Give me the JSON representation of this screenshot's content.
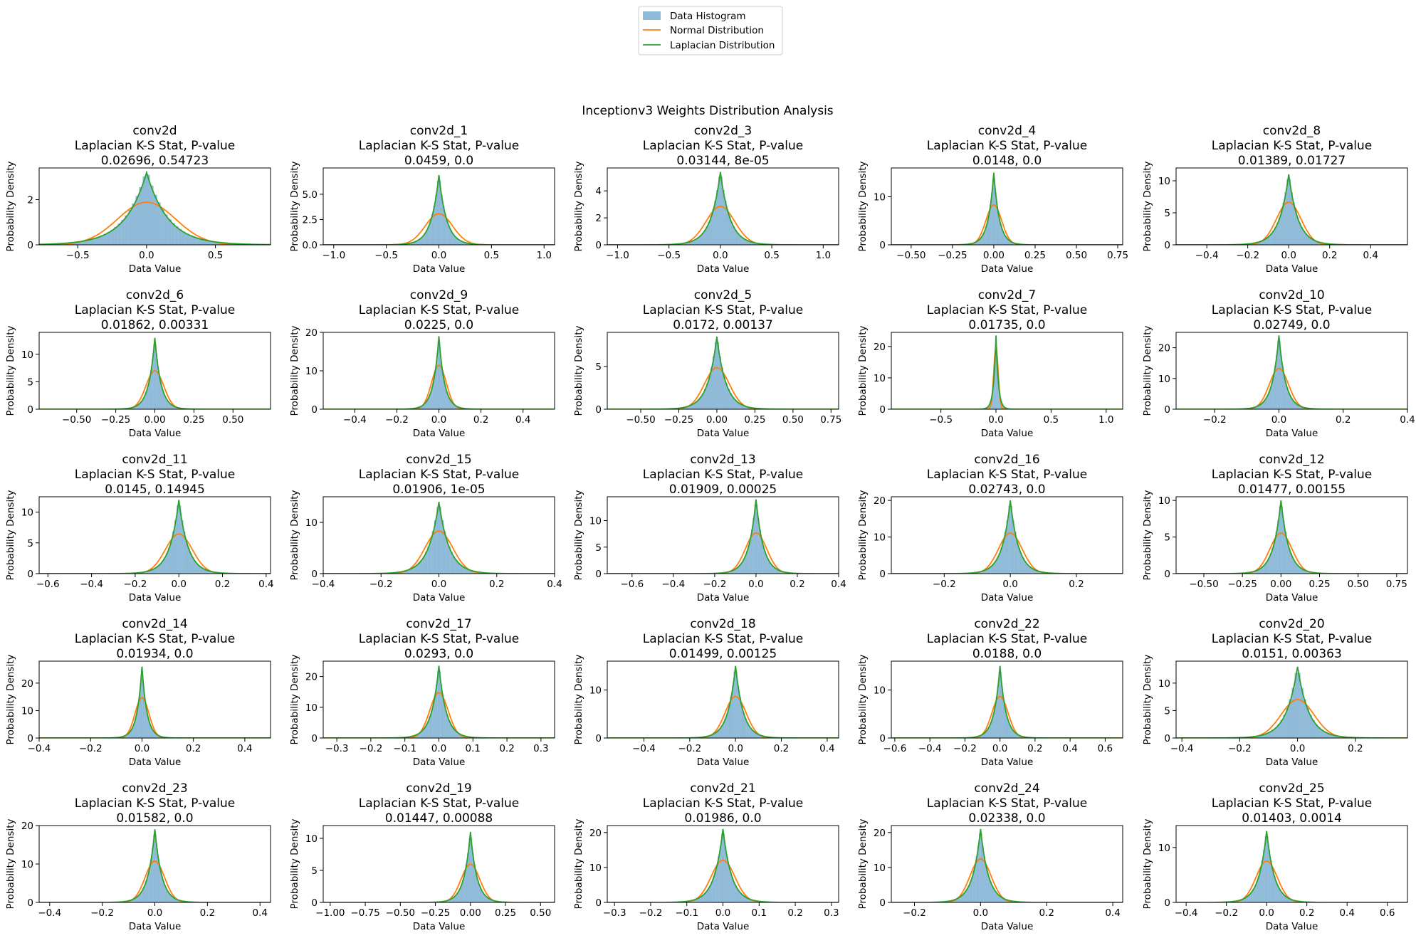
{
  "figure": {
    "suptitle": "Inceptionv3 Weights Distribution Analysis",
    "xlabel": "Data Value",
    "ylabel": "Probability Density",
    "stat_label": "Laplacian K-S Stat, P-value",
    "colors": {
      "hist": "#1f77b4",
      "normal": "#ff7f0e",
      "laplace": "#2ca02c"
    }
  },
  "legend": {
    "items": [
      {
        "label": "Data Histogram",
        "kind": "patch",
        "color": "#1f77b4"
      },
      {
        "label": "Normal Distribution",
        "kind": "line",
        "color": "#ff7f0e"
      },
      {
        "label": "Laplacian Distribution",
        "kind": "line",
        "color": "#2ca02c"
      }
    ]
  },
  "chart_data": [
    {
      "type": "histogram+line",
      "name": "conv2d",
      "stats": "0.02696, 0.54723",
      "xlim": [
        -0.78,
        0.9
      ],
      "xticks": [
        -0.5,
        0,
        0.5
      ],
      "xtick_labels": [
        "−0.5",
        "0.0",
        "0.5"
      ],
      "ylim": [
        0,
        3.4
      ],
      "yticks": [
        0,
        2
      ],
      "ytick_labels": [
        "0",
        "2"
      ],
      "mu": 0,
      "sigma": 0.21,
      "laplace_b": 0.155,
      "peak": 3.2,
      "hist_range": [
        -0.6,
        0.7
      ],
      "bins": 50,
      "hist_scale": 1.04
    },
    {
      "type": "histogram+line",
      "name": "conv2d_1",
      "stats": "0.0459, 0.0",
      "xlim": [
        -1.1,
        1.1
      ],
      "xticks": [
        -1,
        -0.5,
        0,
        0.5,
        1
      ],
      "xtick_labels": [
        "−1.0",
        "−0.5",
        "0.0",
        "0.5",
        "1.0"
      ],
      "ylim": [
        0,
        7.6
      ],
      "yticks": [
        0,
        2.5,
        5
      ],
      "ytick_labels": [
        "0.0",
        "2.5",
        "5.0"
      ],
      "mu": 0,
      "sigma": 0.13,
      "laplace_b": 0.0727,
      "peak": 6.9,
      "hist_range": [
        -0.45,
        0.45
      ],
      "bins": 50,
      "hist_scale": 1.04
    },
    {
      "type": "histogram+line",
      "name": "conv2d_3",
      "stats": "0.03144, 8e-05",
      "xlim": [
        -1.1,
        1.15
      ],
      "xticks": [
        -1,
        -0.5,
        0,
        0.5,
        1
      ],
      "xtick_labels": [
        "−1.0",
        "−0.5",
        "0.0",
        "0.5",
        "1.0"
      ],
      "ylim": [
        0,
        5.7
      ],
      "yticks": [
        0,
        2,
        4
      ],
      "ytick_labels": [
        "0",
        "2",
        "4"
      ],
      "mu": 0,
      "sigma": 0.14,
      "laplace_b": 0.0926,
      "peak": 5.4,
      "hist_range": [
        -0.5,
        0.5
      ],
      "bins": 50,
      "hist_scale": 1.04
    },
    {
      "type": "histogram+line",
      "name": "conv2d_4",
      "stats": "0.0148, 0.0",
      "xlim": [
        -0.62,
        0.78
      ],
      "xticks": [
        -0.5,
        -0.25,
        0,
        0.25,
        0.5,
        0.75
      ],
      "xtick_labels": [
        "−0.50",
        "−0.25",
        "0.00",
        "0.25",
        "0.50",
        "0.75"
      ],
      "ylim": [
        0,
        16
      ],
      "yticks": [
        0,
        10
      ],
      "ytick_labels": [
        "0",
        "10"
      ],
      "mu": 0,
      "sigma": 0.048,
      "laplace_b": 0.0333,
      "peak": 15,
      "hist_range": [
        -0.2,
        0.2
      ],
      "bins": 50,
      "hist_scale": 1.04
    },
    {
      "type": "histogram+line",
      "name": "conv2d_8",
      "stats": "0.01389, 0.01727",
      "xlim": [
        -0.55,
        0.58
      ],
      "xticks": [
        -0.4,
        -0.2,
        0,
        0.2,
        0.4
      ],
      "xtick_labels": [
        "−0.4",
        "−0.2",
        "0.0",
        "0.2",
        "0.4"
      ],
      "ylim": [
        0,
        12
      ],
      "yticks": [
        0,
        5,
        10
      ],
      "ytick_labels": [
        "0",
        "5",
        "10"
      ],
      "mu": 0,
      "sigma": 0.06,
      "laplace_b": 0.0455,
      "peak": 11,
      "hist_range": [
        -0.25,
        0.25
      ],
      "bins": 50,
      "hist_scale": 1.04
    },
    {
      "type": "histogram+line",
      "name": "conv2d_6",
      "stats": "0.01862, 0.00331",
      "xlim": [
        -0.74,
        0.74
      ],
      "xticks": [
        -0.5,
        -0.25,
        0,
        0.25,
        0.5
      ],
      "xtick_labels": [
        "−0.50",
        "−0.25",
        "0.00",
        "0.25",
        "0.50"
      ],
      "ylim": [
        0,
        14
      ],
      "yticks": [
        0,
        5,
        10
      ],
      "ytick_labels": [
        "0",
        "5",
        "10"
      ],
      "mu": 0,
      "sigma": 0.057,
      "laplace_b": 0.0385,
      "peak": 13,
      "hist_range": [
        -0.25,
        0.25
      ],
      "bins": 50,
      "hist_scale": 1.04
    },
    {
      "type": "histogram+line",
      "name": "conv2d_9",
      "stats": "0.0225, 0.0",
      "xlim": [
        -0.55,
        0.55
      ],
      "xticks": [
        -0.4,
        -0.2,
        0,
        0.2,
        0.4
      ],
      "xtick_labels": [
        "−0.4",
        "−0.2",
        "0.0",
        "0.2",
        "0.4"
      ],
      "ylim": [
        0,
        20
      ],
      "yticks": [
        0,
        10,
        20
      ],
      "ytick_labels": [
        "0",
        "10",
        "20"
      ],
      "mu": 0,
      "sigma": 0.035,
      "laplace_b": 0.0263,
      "peak": 19,
      "hist_range": [
        -0.15,
        0.15
      ],
      "bins": 50,
      "hist_scale": 1.04
    },
    {
      "type": "histogram+line",
      "name": "conv2d_5",
      "stats": "0.0172, 0.00137",
      "xlim": [
        -0.72,
        0.8
      ],
      "xticks": [
        -0.5,
        -0.25,
        0,
        0.25,
        0.5,
        0.75
      ],
      "xtick_labels": [
        "−0.50",
        "−0.25",
        "0.00",
        "0.25",
        "0.50",
        "0.75"
      ],
      "ylim": [
        0,
        9
      ],
      "yticks": [
        0,
        5
      ],
      "ytick_labels": [
        "0",
        "5"
      ],
      "mu": 0,
      "sigma": 0.082,
      "laplace_b": 0.0588,
      "peak": 8.5,
      "hist_range": [
        -0.35,
        0.35
      ],
      "bins": 50,
      "hist_scale": 1.04
    },
    {
      "type": "histogram+line",
      "name": "conv2d_7",
      "stats": "0.01735, 0.0",
      "xlim": [
        -0.95,
        1.15
      ],
      "xticks": [
        -0.5,
        0,
        0.5,
        1
      ],
      "xtick_labels": [
        "−0.5",
        "0.0",
        "0.5",
        "1.0"
      ],
      "ylim": [
        0,
        24.5
      ],
      "yticks": [
        0,
        10,
        20
      ],
      "ytick_labels": [
        "0",
        "10",
        "20"
      ],
      "mu": 0,
      "sigma": 0.02,
      "laplace_b": 0.0213,
      "peak": 23.5,
      "hist_range": [
        -0.1,
        0.1
      ],
      "bins": 40,
      "hist_scale": 1.04
    },
    {
      "type": "histogram+line",
      "name": "conv2d_10",
      "stats": "0.02749, 0.0",
      "xlim": [
        -0.32,
        0.4
      ],
      "xticks": [
        -0.2,
        0,
        0.2,
        0.4
      ],
      "xtick_labels": [
        "−0.2",
        "0.0",
        "0.2",
        "0.4"
      ],
      "ylim": [
        0,
        25
      ],
      "yticks": [
        0,
        10,
        20
      ],
      "ytick_labels": [
        "0",
        "10",
        "20"
      ],
      "mu": 0,
      "sigma": 0.03,
      "laplace_b": 0.0208,
      "peak": 24,
      "hist_range": [
        -0.12,
        0.12
      ],
      "bins": 50,
      "hist_scale": 1.04
    },
    {
      "type": "histogram+line",
      "name": "conv2d_11",
      "stats": "0.0145, 0.14945",
      "xlim": [
        -0.64,
        0.42
      ],
      "xticks": [
        -0.6,
        -0.4,
        -0.2,
        0,
        0.2,
        0.4
      ],
      "xtick_labels": [
        "−0.6",
        "−0.4",
        "−0.2",
        "0.0",
        "0.2",
        "0.4"
      ],
      "ylim": [
        0,
        12.5
      ],
      "yticks": [
        0,
        5,
        10
      ],
      "ytick_labels": [
        "0",
        "5",
        "10"
      ],
      "mu": 0,
      "sigma": 0.062,
      "laplace_b": 0.0417,
      "peak": 12,
      "hist_range": [
        -0.25,
        0.25
      ],
      "bins": 50,
      "hist_scale": 1.04
    },
    {
      "type": "histogram+line",
      "name": "conv2d_15",
      "stats": "0.01906, 1e-05",
      "xlim": [
        -0.4,
        0.4
      ],
      "xticks": [
        -0.4,
        -0.2,
        0,
        0.2,
        0.4
      ],
      "xtick_labels": [
        "−0.4",
        "−0.2",
        "0.0",
        "0.2",
        "0.4"
      ],
      "ylim": [
        0,
        15
      ],
      "yticks": [
        0,
        10
      ],
      "ytick_labels": [
        "0",
        "10"
      ],
      "mu": 0,
      "sigma": 0.048,
      "laplace_b": 0.0357,
      "peak": 14,
      "hist_range": [
        -0.2,
        0.2
      ],
      "bins": 50,
      "hist_scale": 1.04
    },
    {
      "type": "histogram+line",
      "name": "conv2d_13",
      "stats": "0.01909, 0.00025",
      "xlim": [
        -0.72,
        0.4
      ],
      "xticks": [
        -0.6,
        -0.4,
        -0.2,
        0,
        0.2,
        0.4
      ],
      "xtick_labels": [
        "−0.6",
        "−0.4",
        "−0.2",
        "0.0",
        "0.2",
        "0.4"
      ],
      "ylim": [
        0,
        14.5
      ],
      "yticks": [
        0,
        5,
        10
      ],
      "ytick_labels": [
        "0",
        "5",
        "10"
      ],
      "mu": 0,
      "sigma": 0.052,
      "laplace_b": 0.0357,
      "peak": 14,
      "hist_range": [
        -0.2,
        0.2
      ],
      "bins": 50,
      "hist_scale": 1.04
    },
    {
      "type": "histogram+line",
      "name": "conv2d_16",
      "stats": "0.02743, 0.0",
      "xlim": [
        -0.36,
        0.34
      ],
      "xticks": [
        -0.2,
        0,
        0.2
      ],
      "xtick_labels": [
        "−0.2",
        "0.0",
        "0.2"
      ],
      "ylim": [
        0,
        21
      ],
      "yticks": [
        0,
        10,
        20
      ],
      "ytick_labels": [
        "0",
        "10",
        "20"
      ],
      "mu": 0,
      "sigma": 0.036,
      "laplace_b": 0.025,
      "peak": 20,
      "hist_range": [
        -0.15,
        0.15
      ],
      "bins": 50,
      "hist_scale": 1.04
    },
    {
      "type": "histogram+line",
      "name": "conv2d_12",
      "stats": "0.01477, 0.00155",
      "xlim": [
        -0.68,
        0.82
      ],
      "xticks": [
        -0.5,
        -0.25,
        0,
        0.25,
        0.5,
        0.75
      ],
      "xtick_labels": [
        "−0.50",
        "−0.25",
        "0.00",
        "0.25",
        "0.50",
        "0.75"
      ],
      "ylim": [
        0,
        10.5
      ],
      "yticks": [
        0,
        5,
        10
      ],
      "ytick_labels": [
        "0",
        "5",
        "10"
      ],
      "mu": 0,
      "sigma": 0.072,
      "laplace_b": 0.05,
      "peak": 10,
      "hist_range": [
        -0.3,
        0.3
      ],
      "bins": 50,
      "hist_scale": 1.04
    },
    {
      "type": "histogram+line",
      "name": "conv2d_14",
      "stats": "0.01934, 0.0",
      "xlim": [
        -0.4,
        0.5
      ],
      "xticks": [
        -0.4,
        -0.2,
        0,
        0.2,
        0.4
      ],
      "xtick_labels": [
        "−0.4",
        "−0.2",
        "0.0",
        "0.2",
        "0.4"
      ],
      "ylim": [
        0,
        28
      ],
      "yticks": [
        0,
        10,
        20
      ],
      "ytick_labels": [
        "0",
        "10",
        "20"
      ],
      "mu": 0,
      "sigma": 0.027,
      "laplace_b": 0.0192,
      "peak": 26,
      "hist_range": [
        -0.1,
        0.1
      ],
      "bins": 50,
      "hist_scale": 1.04
    },
    {
      "type": "histogram+line",
      "name": "conv2d_17",
      "stats": "0.0293, 0.0",
      "xlim": [
        -0.34,
        0.34
      ],
      "xticks": [
        -0.3,
        -0.2,
        -0.1,
        0,
        0.1,
        0.2,
        0.3
      ],
      "xtick_labels": [
        "−0.3",
        "−0.2",
        "−0.1",
        "0.0",
        "0.1",
        "0.2",
        "0.3"
      ],
      "ylim": [
        0,
        25
      ],
      "yticks": [
        0,
        10,
        20
      ],
      "ytick_labels": [
        "0",
        "10",
        "20"
      ],
      "mu": 0,
      "sigma": 0.027,
      "laplace_b": 0.0213,
      "peak": 23.5,
      "hist_range": [
        -0.12,
        0.12
      ],
      "bins": 50,
      "hist_scale": 1.04
    },
    {
      "type": "histogram+line",
      "name": "conv2d_18",
      "stats": "0.01499, 0.00125",
      "xlim": [
        -0.56,
        0.45
      ],
      "xticks": [
        -0.4,
        -0.2,
        0,
        0.2,
        0.4
      ],
      "xtick_labels": [
        "−0.4",
        "−0.2",
        "0.0",
        "0.2",
        "0.4"
      ],
      "ylim": [
        0,
        16
      ],
      "yticks": [
        0,
        10
      ],
      "ytick_labels": [
        "0",
        "10"
      ],
      "mu": 0,
      "sigma": 0.046,
      "laplace_b": 0.0333,
      "peak": 15,
      "hist_range": [
        -0.2,
        0.2
      ],
      "bins": 50,
      "hist_scale": 1.04
    },
    {
      "type": "histogram+line",
      "name": "conv2d_22",
      "stats": "0.0188, 0.0",
      "xlim": [
        -0.62,
        0.7
      ],
      "xticks": [
        -0.6,
        -0.4,
        -0.2,
        0,
        0.2,
        0.4,
        0.6
      ],
      "xtick_labels": [
        "−0.6",
        "−0.4",
        "−0.2",
        "0.0",
        "0.2",
        "0.4",
        "0.6"
      ],
      "ylim": [
        0,
        16
      ],
      "yticks": [
        0,
        10
      ],
      "ytick_labels": [
        "0",
        "10"
      ],
      "mu": 0,
      "sigma": 0.046,
      "laplace_b": 0.0333,
      "peak": 15,
      "hist_range": [
        -0.2,
        0.2
      ],
      "bins": 50,
      "hist_scale": 1.04
    },
    {
      "type": "histogram+line",
      "name": "conv2d_20",
      "stats": "0.0151, 0.00363",
      "xlim": [
        -0.42,
        0.38
      ],
      "xticks": [
        -0.4,
        -0.2,
        0,
        0.2
      ],
      "xtick_labels": [
        "−0.4",
        "−0.2",
        "0.0",
        "0.2"
      ],
      "ylim": [
        0,
        14
      ],
      "yticks": [
        0,
        5,
        10
      ],
      "ytick_labels": [
        "0",
        "5",
        "10"
      ],
      "mu": 0,
      "sigma": 0.057,
      "laplace_b": 0.0385,
      "peak": 13,
      "hist_range": [
        -0.25,
        0.25
      ],
      "bins": 50,
      "hist_scale": 1.04
    },
    {
      "type": "histogram+line",
      "name": "conv2d_23",
      "stats": "0.01582, 0.0",
      "xlim": [
        -0.44,
        0.44
      ],
      "xticks": [
        -0.4,
        -0.2,
        0,
        0.2,
        0.4
      ],
      "xtick_labels": [
        "−0.4",
        "−0.2",
        "0.0",
        "0.2",
        "0.4"
      ],
      "ylim": [
        0,
        20
      ],
      "yticks": [
        0,
        10,
        20
      ],
      "ytick_labels": [
        "0",
        "10",
        "20"
      ],
      "mu": 0,
      "sigma": 0.037,
      "laplace_b": 0.0263,
      "peak": 19,
      "hist_range": [
        -0.15,
        0.15
      ],
      "bins": 50,
      "hist_scale": 1.04
    },
    {
      "type": "histogram+line",
      "name": "conv2d_19",
      "stats": "0.01447, 0.00088",
      "xlim": [
        -1.05,
        0.6
      ],
      "xticks": [
        -1,
        -0.75,
        -0.5,
        -0.25,
        0,
        0.25,
        0.5
      ],
      "xtick_labels": [
        "−1.00",
        "−0.75",
        "−0.50",
        "−0.25",
        "0.00",
        "0.25",
        "0.50"
      ],
      "ylim": [
        0,
        12
      ],
      "yticks": [
        0,
        5,
        10
      ],
      "ytick_labels": [
        "0",
        "5",
        "10"
      ],
      "mu": 0,
      "sigma": 0.067,
      "laplace_b": 0.0455,
      "peak": 11,
      "hist_range": [
        -0.3,
        0.3
      ],
      "bins": 50,
      "hist_scale": 1.04
    },
    {
      "type": "histogram+line",
      "name": "conv2d_21",
      "stats": "0.01986, 0.0",
      "xlim": [
        -0.32,
        0.32
      ],
      "xticks": [
        -0.3,
        -0.2,
        -0.1,
        0,
        0.1,
        0.2,
        0.3
      ],
      "xtick_labels": [
        "−0.3",
        "−0.2",
        "−0.1",
        "0.0",
        "0.1",
        "0.2",
        "0.3"
      ],
      "ylim": [
        0,
        22
      ],
      "yticks": [
        0,
        10,
        20
      ],
      "ytick_labels": [
        "0",
        "10",
        "20"
      ],
      "mu": 0,
      "sigma": 0.033,
      "laplace_b": 0.0238,
      "peak": 21,
      "hist_range": [
        -0.12,
        0.12
      ],
      "bins": 50,
      "hist_scale": 1.04
    },
    {
      "type": "histogram+line",
      "name": "conv2d_24",
      "stats": "0.02338, 0.0",
      "xlim": [
        -0.27,
        0.43
      ],
      "xticks": [
        -0.2,
        0,
        0.2,
        0.4
      ],
      "xtick_labels": [
        "−0.2",
        "0.0",
        "0.2",
        "0.4"
      ],
      "ylim": [
        0,
        22
      ],
      "yticks": [
        0,
        10,
        20
      ],
      "ytick_labels": [
        "0",
        "10",
        "20"
      ],
      "mu": 0,
      "sigma": 0.032,
      "laplace_b": 0.0238,
      "peak": 21,
      "hist_range": [
        -0.12,
        0.12
      ],
      "bins": 50,
      "hist_scale": 1.04
    },
    {
      "type": "histogram+line",
      "name": "conv2d_25",
      "stats": "0.01403, 0.0014",
      "xlim": [
        -0.45,
        0.7
      ],
      "xticks": [
        -0.4,
        -0.2,
        0,
        0.2,
        0.4,
        0.6
      ],
      "xtick_labels": [
        "−0.4",
        "−0.2",
        "0.0",
        "0.2",
        "0.4",
        "0.6"
      ],
      "ylim": [
        0,
        14
      ],
      "yticks": [
        0,
        10
      ],
      "ytick_labels": [
        "0",
        "10"
      ],
      "mu": 0,
      "sigma": 0.053,
      "laplace_b": 0.0385,
      "peak": 13,
      "hist_range": [
        -0.22,
        0.22
      ],
      "bins": 50,
      "hist_scale": 1.04
    }
  ]
}
